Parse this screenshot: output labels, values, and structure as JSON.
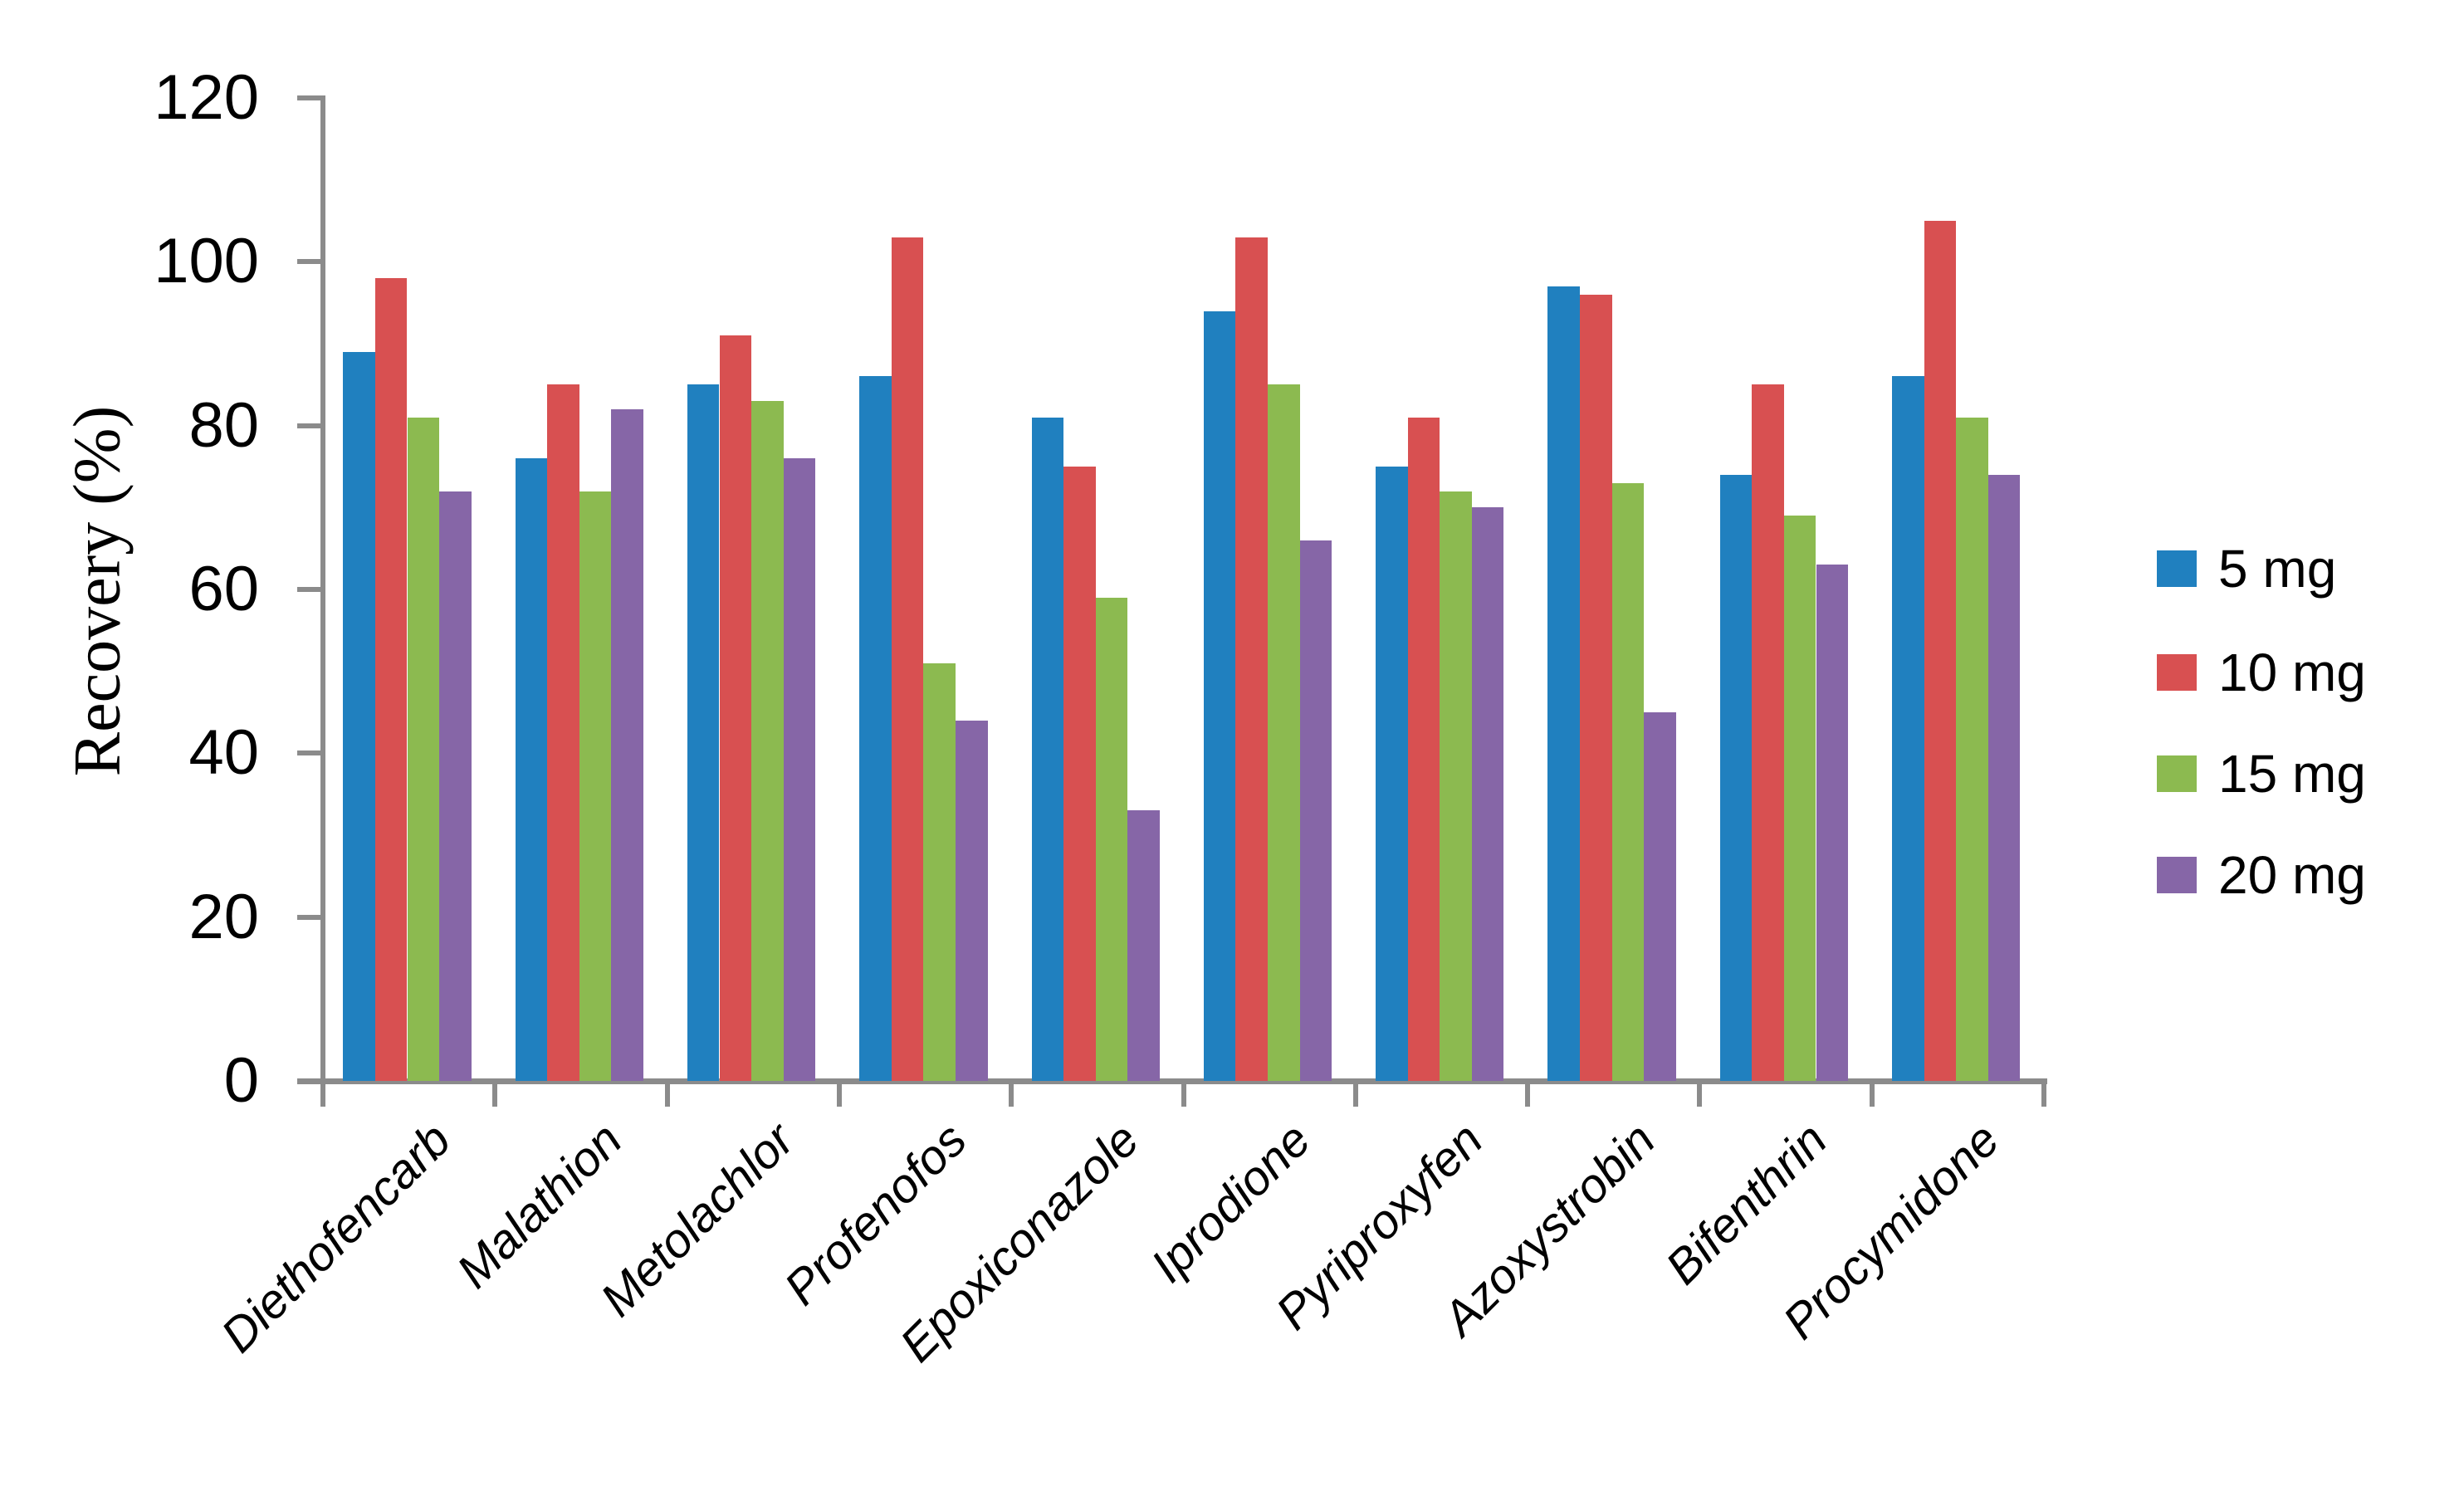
{
  "chart_data": {
    "type": "bar",
    "title": "",
    "xlabel": "",
    "ylabel": "Recovery (%)",
    "ylim": [
      0,
      120
    ],
    "yticks": [
      0,
      20,
      40,
      60,
      80,
      100,
      120
    ],
    "grid": false,
    "legend_position": "right",
    "categories": [
      "Diethofencarb",
      "Malathion",
      "Metolachlor",
      "Profenofos",
      "Epoxiconazole",
      "Iprodione",
      "Pyriproxyfen",
      "Azoxystrobin",
      "Bifenthrin",
      "Procymidone"
    ],
    "series": [
      {
        "name": "5 mg",
        "color": "#2080bf",
        "values": [
          89,
          76,
          85,
          86,
          81,
          94,
          75,
          97,
          74,
          86
        ]
      },
      {
        "name": "10 mg",
        "color": "#d85051",
        "values": [
          98,
          85,
          91,
          103,
          75,
          103,
          81,
          96,
          85,
          105
        ]
      },
      {
        "name": "15 mg",
        "color": "#8cba50",
        "values": [
          81,
          72,
          83,
          51,
          59,
          85,
          72,
          73,
          69,
          81
        ]
      },
      {
        "name": "20 mg",
        "color": "#8666a7",
        "values": [
          72,
          82,
          76,
          44,
          33,
          66,
          70,
          45,
          63,
          74
        ]
      }
    ]
  },
  "axis": {
    "color": "#8b8b8b"
  }
}
